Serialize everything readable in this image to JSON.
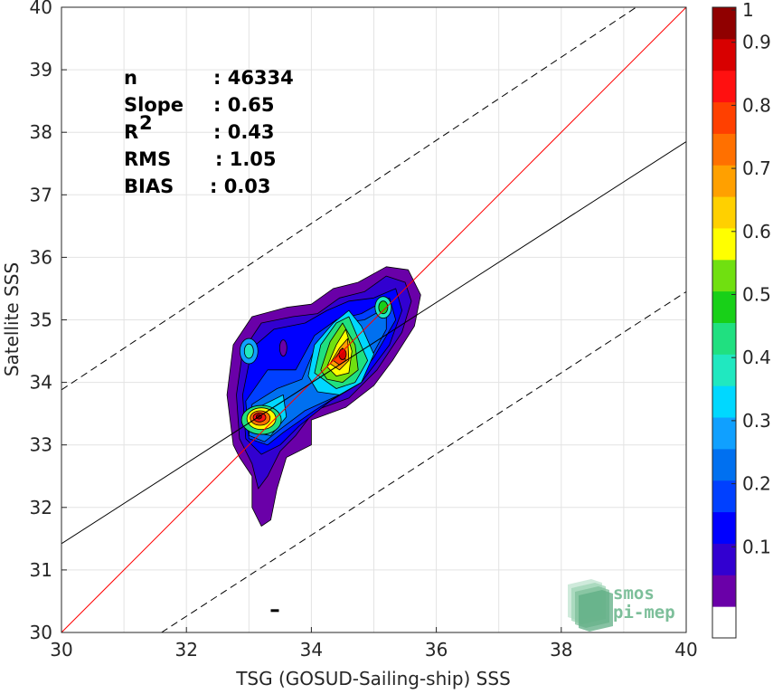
{
  "chart_data": {
    "type": "scatter",
    "subtype": "density contour scatter comparison",
    "xlabel": "TSG (GOSUD-Sailing-ship) SSS",
    "ylabel": "Satellite SSS",
    "xlim": [
      30,
      40
    ],
    "ylim": [
      30,
      40
    ],
    "xticks": [
      "30",
      "32",
      "34",
      "36",
      "38",
      "40"
    ],
    "yticks": [
      "30",
      "31",
      "32",
      "33",
      "34",
      "35",
      "36",
      "37",
      "38",
      "39",
      "40"
    ],
    "grid": true,
    "stats": [
      {
        "name": "n",
        "value": ": 46334"
      },
      {
        "name": "Slope",
        "value": ": 0.65"
      },
      {
        "name": "R",
        "sup": "2",
        "value": ": 0.43"
      },
      {
        "name": "RMS",
        "value": ": 1.05"
      },
      {
        "name": "BIAS",
        "value": ": 0.03"
      }
    ],
    "lines": [
      {
        "style": "one-to-one",
        "color": "#ff0000",
        "points": [
          [
            30,
            30
          ],
          [
            40,
            40
          ]
        ]
      },
      {
        "style": "regression",
        "color": "#000000",
        "points": [
          [
            30,
            31.42
          ],
          [
            40,
            37.85
          ]
        ]
      },
      {
        "style": "upper-bound-dashed",
        "color": "#000000",
        "points": [
          [
            30,
            33.88
          ],
          [
            39.2,
            40
          ]
        ]
      },
      {
        "style": "lower-bound-dashed",
        "color": "#000000",
        "points": [
          [
            31.6,
            30
          ],
          [
            40,
            35.45
          ]
        ]
      }
    ],
    "density_peaks": [
      {
        "x": 34.5,
        "y": 34.45,
        "level": 0.95
      },
      {
        "x": 33.15,
        "y": 33.45,
        "level": 0.95
      },
      {
        "x": 35.15,
        "y": 35.2,
        "level": 0.45
      },
      {
        "x": 33.0,
        "y": 34.5,
        "level": 0.35
      }
    ],
    "colorbar": {
      "ticks": [
        "0.1",
        "0.2",
        "0.3",
        "0.4",
        "0.5",
        "0.6",
        "0.7",
        "0.8",
        "0.9",
        "1"
      ],
      "range": [
        0,
        1
      ],
      "colors": [
        "#ffffff",
        "#6a00a8",
        "#3200d0",
        "#0000ff",
        "#0040ff",
        "#0070f0",
        "#10a0ff",
        "#00d8ff",
        "#20e8c0",
        "#20e080",
        "#18d018",
        "#70e010",
        "#ffff00",
        "#ffd000",
        "#ffa000",
        "#ff7000",
        "#ff4000",
        "#ff1010",
        "#d80000",
        "#900000"
      ]
    }
  },
  "logo": {
    "line1": "smos",
    "line2": "pi-mep"
  }
}
